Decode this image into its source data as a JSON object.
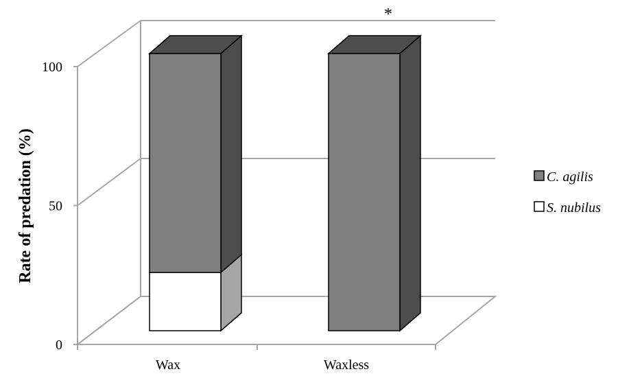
{
  "chart_data": {
    "type": "bar",
    "stacked": true,
    "style": "3d",
    "categories": [
      "Wax",
      "Waxless"
    ],
    "series": [
      {
        "name": "S. nubilus",
        "values": [
          21,
          0
        ],
        "color": "#ffffff",
        "side_color": "#a6a6a6"
      },
      {
        "name": "C. agilis",
        "values": [
          79,
          100
        ],
        "color": "#808080",
        "side_color": "#4d4d4d"
      }
    ],
    "ylabel": "Rate of predation (%)",
    "xlabel": "",
    "ylim": [
      0,
      100
    ],
    "yticks": [
      "0",
      "50",
      "100"
    ],
    "grid": true,
    "legend_position": "right",
    "annotations": [
      {
        "text": "*",
        "category": "Waxless"
      }
    ]
  }
}
